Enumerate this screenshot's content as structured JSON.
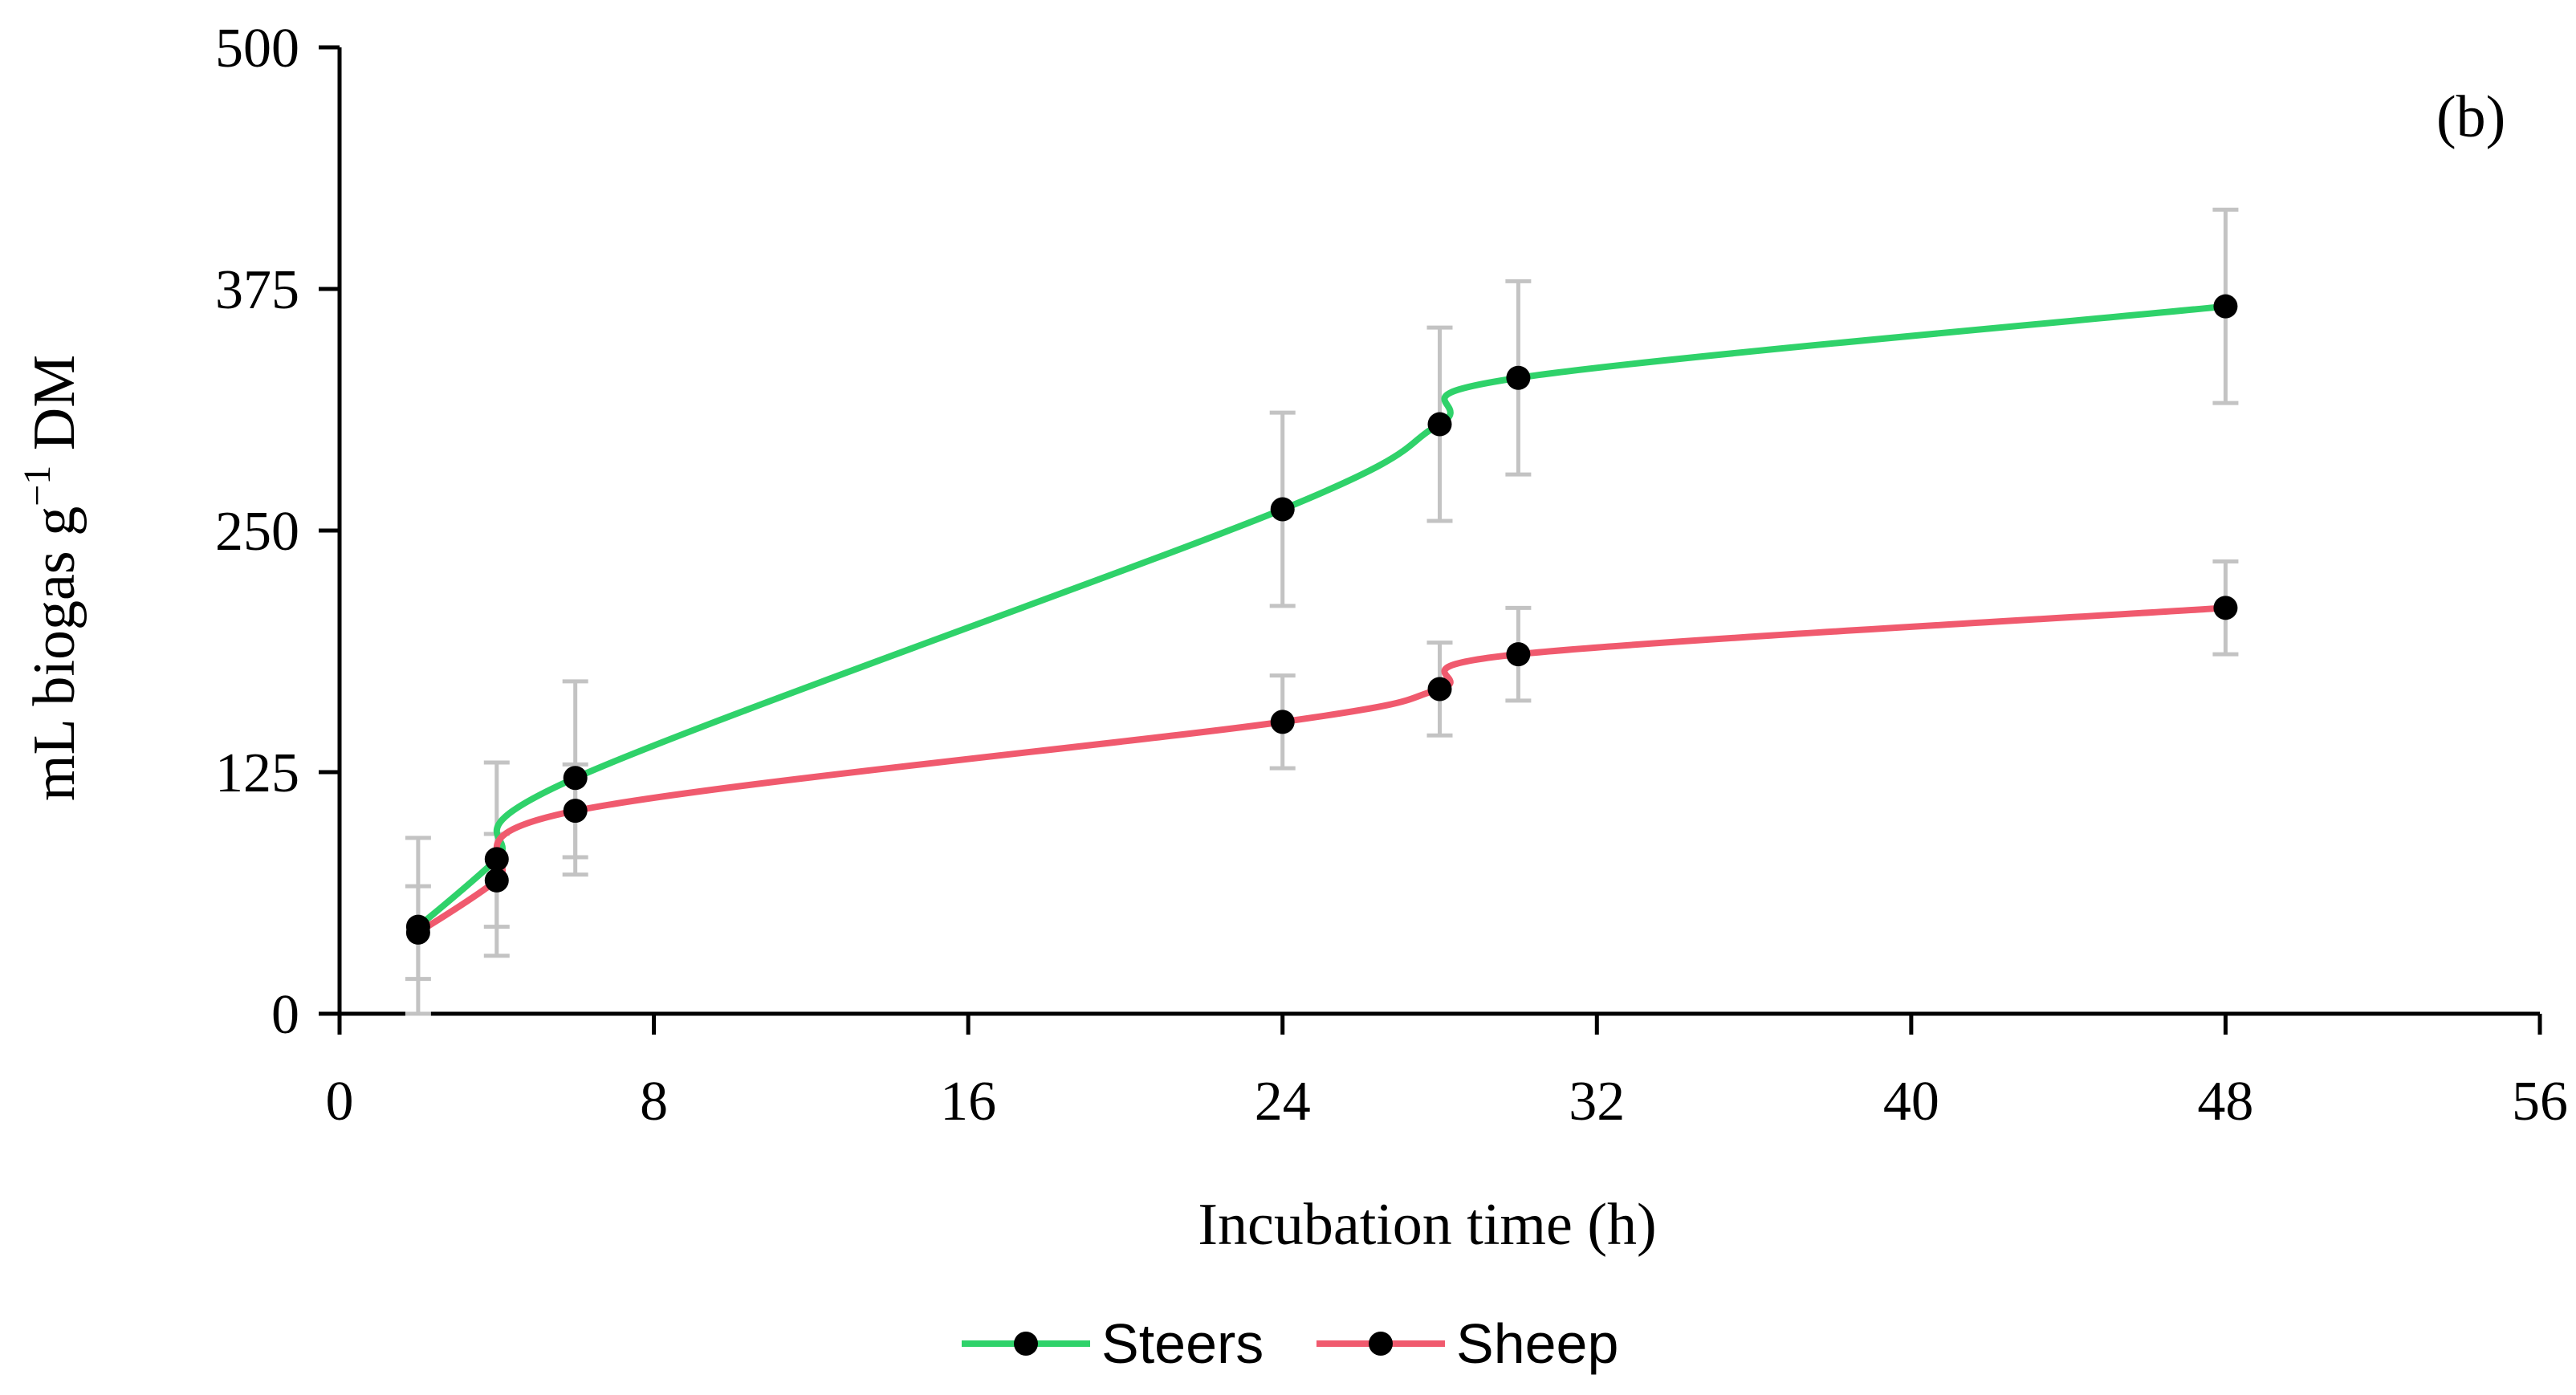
{
  "chart_data": {
    "type": "line",
    "title": "",
    "panel_label": "(b)",
    "xlabel": "Incubation time (h)",
    "ylabel_main": "mL biogas g",
    "ylabel_sup": "−1",
    "ylabel_tail": " DM",
    "xlim": [
      0,
      56
    ],
    "ylim": [
      0,
      500
    ],
    "xticks": [
      0,
      8,
      16,
      24,
      32,
      40,
      48,
      56
    ],
    "yticks": [
      0,
      125,
      250,
      375,
      500
    ],
    "x": [
      2,
      4,
      6,
      24,
      28,
      30,
      48
    ],
    "legend_position": "bottom-center",
    "series": [
      {
        "name": "Steers",
        "color": "#2fd26a",
        "values": [
          45,
          80,
          122,
          261,
          305,
          329,
          366
        ],
        "errors": [
          46,
          50,
          50,
          50,
          50,
          50,
          50
        ]
      },
      {
        "name": "Sheep",
        "color": "#f05a6e",
        "values": [
          42,
          69,
          105,
          151,
          168,
          186,
          210
        ],
        "errors": [
          24,
          24,
          24,
          24,
          24,
          24,
          24
        ]
      }
    ],
    "error_bar_color": "#c3c3c3",
    "marker_color": "#000000"
  }
}
